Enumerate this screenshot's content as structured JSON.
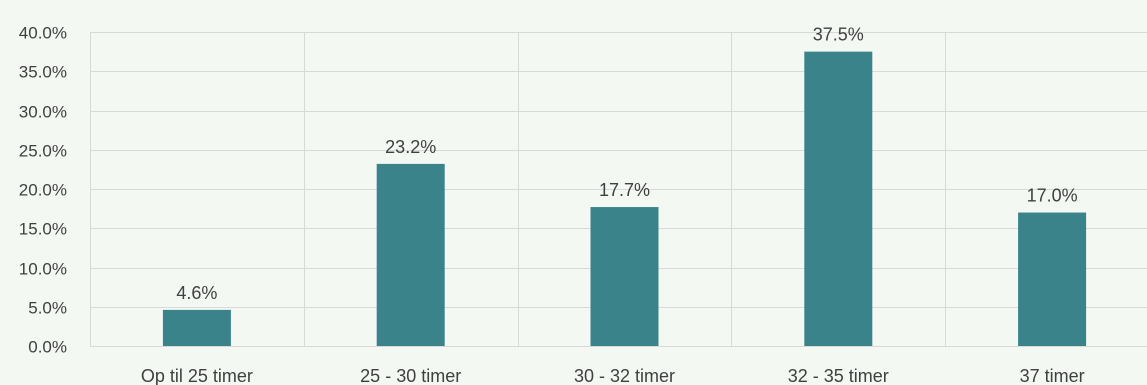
{
  "chart_data": {
    "type": "bar",
    "title": "",
    "xlabel": "",
    "ylabel": "",
    "categories": [
      "Op til 25 timer",
      "25 - 30 timer",
      "30 - 32 timer",
      "32 - 35 timer",
      "37 timer"
    ],
    "values": [
      4.6,
      23.2,
      17.7,
      37.5,
      17.0
    ],
    "data_labels": [
      "4.6%",
      "23.2%",
      "17.7%",
      "37.5%",
      "17.0%"
    ],
    "ylim": [
      0,
      40
    ],
    "yticks": [
      0,
      5,
      10,
      15,
      20,
      25,
      30,
      35,
      40
    ],
    "ytick_labels": [
      "0.0%",
      "5.0%",
      "10.0%",
      "15.0%",
      "20.0%",
      "25.0%",
      "30.0%",
      "35.0%",
      "40.0%"
    ],
    "grid": true,
    "legend": "none",
    "colors": {
      "bar": "#3b838a",
      "grid": "#d9d9d9",
      "background": "#f3f8f3",
      "text": "#404040"
    }
  }
}
